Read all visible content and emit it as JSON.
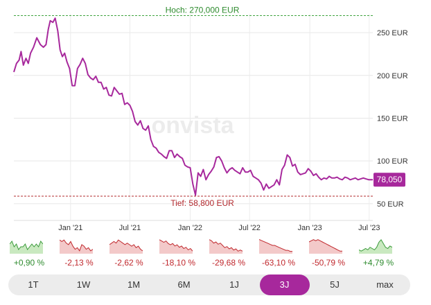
{
  "chart_data": {
    "type": "line",
    "currency": "EUR",
    "y_ticks": [
      "250 EUR",
      "200 EUR",
      "150 EUR",
      "100 EUR",
      "50 EUR"
    ],
    "y_tick_values": [
      250,
      200,
      150,
      100,
      50
    ],
    "x_ticks": [
      "Jan '21",
      "Jul '21",
      "Jan '22",
      "Jul '22",
      "Jan '23",
      "Jul '23"
    ],
    "x_tick_dates": [
      "2021-01-01",
      "2021-07-01",
      "2022-01-01",
      "2022-07-01",
      "2023-01-01",
      "2023-07-01"
    ],
    "ylim": [
      45,
      272
    ],
    "xlim": [
      "2020-07-12",
      "2023-07-12"
    ],
    "high": {
      "label": "Hoch: 270,000 EUR",
      "value": 270
    },
    "low": {
      "label": "Tief: 58,800 EUR",
      "value": 58.8
    },
    "last_value": {
      "label": "78,050",
      "value": 78.05,
      "color": "#a7289c"
    },
    "line_color": "#a7289c",
    "watermark": "onvista",
    "series": [
      {
        "x": [
          "2020-07-12",
          "2020-07-20",
          "2020-07-28",
          "2020-08-03",
          "2020-08-10",
          "2020-08-18",
          "2020-08-25",
          "2020-09-01",
          "2020-09-10",
          "2020-09-20",
          "2020-10-01",
          "2020-10-10",
          "2020-10-18",
          "2020-10-25",
          "2020-10-31",
          "2020-11-08",
          "2020-11-15",
          "2020-11-23",
          "2020-11-30",
          "2020-12-07",
          "2020-12-14",
          "2020-12-21",
          "2020-12-29",
          "2021-01-06",
          "2021-01-14",
          "2021-01-22",
          "2021-01-30",
          "2021-02-07",
          "2021-02-15",
          "2021-02-23",
          "2021-03-03",
          "2021-03-11",
          "2021-03-19",
          "2021-03-27",
          "2021-04-04",
          "2021-04-12",
          "2021-04-20",
          "2021-04-28",
          "2021-05-06",
          "2021-05-14",
          "2021-05-22",
          "2021-05-30",
          "2021-06-07",
          "2021-06-15",
          "2021-06-23",
          "2021-07-01",
          "2021-07-09",
          "2021-07-17",
          "2021-07-25",
          "2021-08-02",
          "2021-08-10",
          "2021-08-18",
          "2021-08-26",
          "2021-09-03",
          "2021-09-11",
          "2021-09-19",
          "2021-09-27",
          "2021-10-05",
          "2021-10-13",
          "2021-10-21",
          "2021-10-29",
          "2021-11-06",
          "2021-11-14",
          "2021-11-22",
          "2021-11-30",
          "2021-12-08",
          "2021-12-16",
          "2021-12-24",
          "2022-01-01",
          "2022-01-09",
          "2022-01-17",
          "2022-01-25",
          "2022-02-02",
          "2022-02-10",
          "2022-02-18",
          "2022-02-26",
          "2022-03-06",
          "2022-03-14",
          "2022-03-22",
          "2022-03-30",
          "2022-04-07",
          "2022-04-15",
          "2022-04-23",
          "2022-05-01",
          "2022-05-09",
          "2022-05-17",
          "2022-05-25",
          "2022-06-02",
          "2022-06-10",
          "2022-06-18",
          "2022-06-26",
          "2022-07-04",
          "2022-07-12",
          "2022-07-20",
          "2022-07-28",
          "2022-08-05",
          "2022-08-13",
          "2022-08-21",
          "2022-08-29",
          "2022-09-06",
          "2022-09-14",
          "2022-09-22",
          "2022-09-30",
          "2022-10-08",
          "2022-10-16",
          "2022-10-24",
          "2022-11-01",
          "2022-11-09",
          "2022-11-17",
          "2022-11-25",
          "2022-12-03",
          "2022-12-11",
          "2022-12-19",
          "2022-12-27",
          "2023-01-04",
          "2023-01-12",
          "2023-01-20",
          "2023-01-28",
          "2023-02-05",
          "2023-02-13",
          "2023-02-21",
          "2023-03-01",
          "2023-03-09",
          "2023-03-17",
          "2023-03-25",
          "2023-04-02",
          "2023-04-10",
          "2023-04-18",
          "2023-04-26",
          "2023-05-04",
          "2023-05-12",
          "2023-05-20",
          "2023-05-28",
          "2023-06-05",
          "2023-06-13",
          "2023-06-21",
          "2023-06-29",
          "2023-07-07",
          "2023-07-12"
        ],
        "y": [
          204,
          214,
          218,
          228,
          212,
          220,
          214,
          226,
          233,
          244,
          236,
          233,
          236,
          254,
          264,
          262,
          267,
          252,
          230,
          222,
          226,
          216,
          208,
          188,
          188,
          208,
          213,
          220,
          214,
          201,
          197,
          195,
          199,
          192,
          192,
          184,
          186,
          177,
          176,
          186,
          182,
          178,
          179,
          166,
          168,
          165,
          158,
          146,
          142,
          147,
          138,
          136,
          141,
          125,
          117,
          115,
          110,
          108,
          105,
          103,
          112,
          112,
          104,
          108,
          105,
          103,
          95,
          93,
          92,
          73,
          60,
          86,
          82,
          90,
          78,
          84,
          88,
          93,
          104,
          105,
          100,
          92,
          86,
          90,
          92,
          89,
          87,
          85,
          92,
          87,
          87,
          89,
          82,
          80,
          78,
          74,
          66,
          73,
          68,
          70,
          72,
          78,
          72,
          90,
          95,
          107,
          104,
          94,
          96,
          87,
          84,
          85,
          86,
          91,
          88,
          83,
          85,
          81,
          78,
          80,
          79,
          82,
          80,
          80,
          81,
          79,
          78,
          81,
          80,
          78,
          79,
          80,
          78,
          79,
          80,
          79,
          78.05,
          78.05,
          78.05
        ]
      }
    ]
  },
  "mini_charts": [
    {
      "pct": "+0,90 %",
      "trend": "pos",
      "color": "#3a9a3a",
      "fill": "#c9e9c0",
      "points": [
        4,
        3,
        5,
        4,
        6,
        5,
        5,
        4,
        6,
        5,
        4,
        5,
        4,
        5,
        3,
        4
      ]
    },
    {
      "pct": "-2,13 %",
      "trend": "neg",
      "color": "#c0282d",
      "fill": "#f3c9c9",
      "points": [
        2,
        3,
        2,
        4,
        5,
        3,
        6,
        8,
        7,
        9,
        5,
        6,
        8,
        7,
        9,
        8
      ]
    },
    {
      "pct": "-2,62 %",
      "trend": "neg",
      "color": "#c0282d",
      "fill": "#f3c9c9",
      "points": [
        6,
        5,
        4,
        5,
        3,
        4,
        5,
        6,
        5,
        6,
        7,
        6,
        8,
        7,
        9,
        10
      ]
    },
    {
      "pct": "-18,10 %",
      "trend": "neg",
      "color": "#c0282d",
      "fill": "#f3c9c9",
      "points": [
        2,
        3,
        4,
        3,
        5,
        6,
        5,
        7,
        6,
        8,
        7,
        9,
        8,
        10,
        9,
        11
      ]
    },
    {
      "pct": "-29,68 %",
      "trend": "neg",
      "color": "#c0282d",
      "fill": "#f3c9c9",
      "points": [
        2,
        3,
        5,
        4,
        6,
        5,
        7,
        9,
        8,
        10,
        9,
        11,
        10,
        12,
        11,
        12
      ]
    },
    {
      "pct": "-63,10 %",
      "trend": "neg",
      "color": "#c0282d",
      "fill": "#f3c9c9",
      "points": [
        1,
        2,
        3,
        4,
        5,
        6,
        7,
        7,
        8,
        9,
        10,
        11,
        12,
        12,
        13,
        13
      ]
    },
    {
      "pct": "-50,79 %",
      "trend": "neg",
      "color": "#c0282d",
      "fill": "#f3c9c9",
      "points": [
        4,
        3,
        2,
        3,
        2,
        3,
        4,
        5,
        6,
        7,
        8,
        9,
        10,
        11,
        12,
        12
      ]
    },
    {
      "pct": "+4,79 %",
      "trend": "pos",
      "color": "#3a9a3a",
      "fill": "#c9e9c0",
      "points": [
        10,
        11,
        10,
        9,
        10,
        8,
        9,
        10,
        8,
        4,
        2,
        5,
        8,
        9,
        7,
        8
      ]
    }
  ],
  "tabs": [
    {
      "label": "1T",
      "active": false
    },
    {
      "label": "1W",
      "active": false
    },
    {
      "label": "1M",
      "active": false
    },
    {
      "label": "6M",
      "active": false
    },
    {
      "label": "1J",
      "active": false
    },
    {
      "label": "3J",
      "active": true
    },
    {
      "label": "5J",
      "active": false
    },
    {
      "label": "max",
      "active": false
    }
  ]
}
